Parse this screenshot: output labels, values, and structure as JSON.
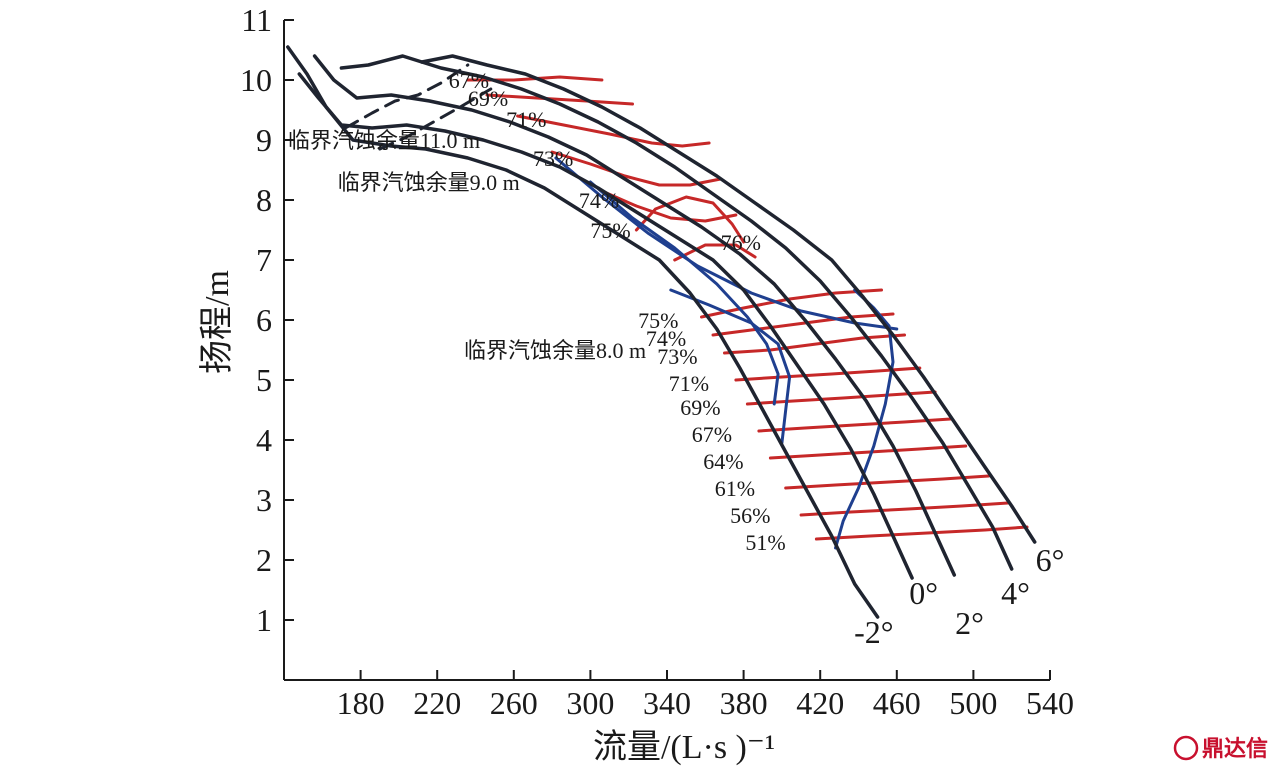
{
  "chart_data": {
    "type": "line",
    "title": "",
    "xlabel": "流量/(L·s )⁻¹",
    "ylabel": "扬程/m",
    "xlim": [
      140,
      540
    ],
    "ylim": [
      0,
      11
    ],
    "x_ticks": [
      180,
      220,
      260,
      300,
      340,
      380,
      420,
      460,
      500,
      540
    ],
    "y_ticks": [
      1,
      2,
      3,
      4,
      5,
      6,
      7,
      8,
      9,
      10,
      11
    ],
    "head_curves": [
      {
        "name": "-2°",
        "color": "#1f2430",
        "points": [
          [
            142,
            10.55
          ],
          [
            152,
            10.1
          ],
          [
            162,
            9.55
          ],
          [
            176,
            9.0
          ],
          [
            196,
            8.9
          ],
          [
            214,
            8.85
          ],
          [
            236,
            8.7
          ],
          [
            256,
            8.5
          ],
          [
            276,
            8.2
          ],
          [
            296,
            7.8
          ],
          [
            316,
            7.4
          ],
          [
            336,
            7.0
          ],
          [
            352,
            6.45
          ],
          [
            366,
            5.85
          ],
          [
            378,
            5.2
          ],
          [
            390,
            4.5
          ],
          [
            402,
            3.8
          ],
          [
            414,
            3.1
          ],
          [
            426,
            2.4
          ],
          [
            438,
            1.6
          ],
          [
            450,
            1.05
          ]
        ]
      },
      {
        "name": "0°",
        "color": "#1f2430",
        "points": [
          [
            148,
            10.1
          ],
          [
            158,
            9.7
          ],
          [
            170,
            9.25
          ],
          [
            186,
            9.2
          ],
          [
            204,
            9.25
          ],
          [
            224,
            9.15
          ],
          [
            244,
            9.0
          ],
          [
            264,
            8.8
          ],
          [
            284,
            8.55
          ],
          [
            304,
            8.2
          ],
          [
            324,
            7.8
          ],
          [
            344,
            7.4
          ],
          [
            364,
            7.0
          ],
          [
            380,
            6.5
          ],
          [
            394,
            5.9
          ],
          [
            408,
            5.25
          ],
          [
            422,
            4.6
          ],
          [
            436,
            3.85
          ],
          [
            448,
            3.1
          ],
          [
            458,
            2.4
          ],
          [
            468,
            1.7
          ]
        ]
      },
      {
        "name": "2°",
        "color": "#1f2430",
        "points": [
          [
            156,
            10.4
          ],
          [
            166,
            10.0
          ],
          [
            178,
            9.7
          ],
          [
            196,
            9.75
          ],
          [
            216,
            9.65
          ],
          [
            238,
            9.5
          ],
          [
            258,
            9.3
          ],
          [
            278,
            9.05
          ],
          [
            298,
            8.75
          ],
          [
            318,
            8.35
          ],
          [
            338,
            7.95
          ],
          [
            358,
            7.55
          ],
          [
            378,
            7.1
          ],
          [
            396,
            6.6
          ],
          [
            412,
            6.0
          ],
          [
            428,
            5.35
          ],
          [
            444,
            4.65
          ],
          [
            458,
            3.9
          ],
          [
            470,
            3.15
          ],
          [
            480,
            2.45
          ],
          [
            490,
            1.75
          ]
        ]
      },
      {
        "name": "4°",
        "color": "#1f2430",
        "points": [
          [
            170,
            10.2
          ],
          [
            184,
            10.25
          ],
          [
            202,
            10.4
          ],
          [
            222,
            10.2
          ],
          [
            244,
            10.05
          ],
          [
            264,
            9.85
          ],
          [
            284,
            9.6
          ],
          [
            304,
            9.3
          ],
          [
            324,
            8.95
          ],
          [
            344,
            8.55
          ],
          [
            364,
            8.1
          ],
          [
            384,
            7.65
          ],
          [
            402,
            7.2
          ],
          [
            420,
            6.65
          ],
          [
            436,
            6.05
          ],
          [
            452,
            5.4
          ],
          [
            468,
            4.7
          ],
          [
            484,
            3.95
          ],
          [
            498,
            3.2
          ],
          [
            510,
            2.55
          ],
          [
            520,
            1.85
          ]
        ]
      },
      {
        "name": "6°",
        "color": "#1f2430",
        "points": [
          [
            212,
            10.3
          ],
          [
            228,
            10.4
          ],
          [
            246,
            10.25
          ],
          [
            266,
            10.1
          ],
          [
            286,
            9.85
          ],
          [
            306,
            9.55
          ],
          [
            326,
            9.2
          ],
          [
            346,
            8.8
          ],
          [
            366,
            8.4
          ],
          [
            386,
            7.95
          ],
          [
            406,
            7.5
          ],
          [
            426,
            7.0
          ],
          [
            442,
            6.4
          ],
          [
            458,
            5.75
          ],
          [
            474,
            5.05
          ],
          [
            490,
            4.3
          ],
          [
            506,
            3.55
          ],
          [
            520,
            2.9
          ],
          [
            532,
            2.3
          ]
        ]
      }
    ],
    "npsh_curves": [
      {
        "name": "临界汽蚀余量11.0 m",
        "color": "#1f2430",
        "dash": true,
        "points": [
          [
            172,
            9.2
          ],
          [
            186,
            9.45
          ],
          [
            198,
            9.65
          ],
          [
            210,
            9.75
          ],
          [
            222,
            9.95
          ],
          [
            236,
            10.25
          ]
        ]
      },
      {
        "name": "临界汽蚀余量9.0 m",
        "color": "#1f2430",
        "dash": true,
        "points": [
          [
            190,
            8.85
          ],
          [
            204,
            9.05
          ],
          [
            218,
            9.3
          ],
          [
            232,
            9.55
          ],
          [
            248,
            9.85
          ]
        ]
      },
      {
        "name": "临界汽蚀余量8.0 m",
        "color": "#1f3f8f",
        "dash": false,
        "points": [
          [
            282,
            8.7
          ],
          [
            306,
            8.05
          ],
          [
            330,
            7.45
          ],
          [
            356,
            6.9
          ],
          [
            384,
            6.45
          ],
          [
            410,
            6.15
          ],
          [
            438,
            5.95
          ],
          [
            460,
            5.85
          ]
        ]
      }
    ],
    "efficiency_contours": [
      {
        "label": "67%",
        "color": "#c62828",
        "points": [
          [
            236,
            10.0
          ],
          [
            260,
            10.0
          ],
          [
            284,
            10.05
          ],
          [
            306,
            10.0
          ]
        ]
      },
      {
        "label": "69%",
        "color": "#c62828",
        "points": [
          [
            246,
            9.75
          ],
          [
            272,
            9.7
          ],
          [
            298,
            9.65
          ],
          [
            322,
            9.6
          ]
        ]
      },
      {
        "label": "71%",
        "color": "#c62828",
        "points": [
          [
            262,
            9.4
          ],
          [
            286,
            9.25
          ],
          [
            310,
            9.1
          ],
          [
            332,
            8.95
          ],
          [
            348,
            8.9
          ],
          [
            362,
            8.95
          ]
        ]
      },
      {
        "label": "73%",
        "color": "#c62828",
        "points": [
          [
            280,
            8.8
          ],
          [
            300,
            8.6
          ],
          [
            318,
            8.4
          ],
          [
            336,
            8.25
          ],
          [
            352,
            8.25
          ],
          [
            368,
            8.35
          ]
        ]
      },
      {
        "label": "74%",
        "color": "#c62828",
        "points": [
          [
            306,
            8.15
          ],
          [
            324,
            7.9
          ],
          [
            342,
            7.7
          ],
          [
            360,
            7.65
          ],
          [
            376,
            7.75
          ]
        ]
      },
      {
        "label": "75%",
        "color": "#c62828",
        "points": [
          [
            324,
            7.5
          ],
          [
            334,
            7.85
          ],
          [
            350,
            8.05
          ],
          [
            364,
            7.95
          ],
          [
            374,
            7.6
          ],
          [
            380,
            7.3
          ]
        ]
      },
      {
        "label": "76%",
        "color": "#c62828",
        "points": [
          [
            344,
            7.0
          ],
          [
            360,
            7.25
          ],
          [
            376,
            7.25
          ],
          [
            386,
            7.05
          ]
        ]
      },
      {
        "label": "75%",
        "color": "#c62828",
        "points": [
          [
            358,
            6.05
          ],
          [
            380,
            6.2
          ],
          [
            404,
            6.35
          ],
          [
            428,
            6.45
          ],
          [
            452,
            6.5
          ]
        ]
      },
      {
        "label": "74%",
        "color": "#c62828",
        "points": [
          [
            364,
            5.75
          ],
          [
            388,
            5.85
          ],
          [
            412,
            5.95
          ],
          [
            436,
            6.05
          ],
          [
            458,
            6.1
          ]
        ]
      },
      {
        "label": "73%",
        "color": "#c62828",
        "points": [
          [
            370,
            5.45
          ],
          [
            394,
            5.5
          ],
          [
            418,
            5.6
          ],
          [
            442,
            5.7
          ],
          [
            464,
            5.75
          ]
        ]
      },
      {
        "label": "71%",
        "color": "#c62828",
        "points": [
          [
            376,
            5.0
          ],
          [
            400,
            5.05
          ],
          [
            426,
            5.1
          ],
          [
            450,
            5.15
          ],
          [
            472,
            5.2
          ]
        ]
      },
      {
        "label": "69%",
        "color": "#c62828",
        "points": [
          [
            382,
            4.6
          ],
          [
            406,
            4.65
          ],
          [
            432,
            4.7
          ],
          [
            456,
            4.75
          ],
          [
            480,
            4.8
          ]
        ]
      },
      {
        "label": "67%",
        "color": "#c62828",
        "points": [
          [
            388,
            4.15
          ],
          [
            412,
            4.2
          ],
          [
            438,
            4.25
          ],
          [
            464,
            4.3
          ],
          [
            488,
            4.35
          ]
        ]
      },
      {
        "label": "64%",
        "color": "#c62828",
        "points": [
          [
            394,
            3.7
          ],
          [
            420,
            3.75
          ],
          [
            446,
            3.8
          ],
          [
            472,
            3.85
          ],
          [
            496,
            3.9
          ]
        ]
      },
      {
        "label": "61%",
        "color": "#c62828",
        "points": [
          [
            402,
            3.2
          ],
          [
            428,
            3.25
          ],
          [
            456,
            3.3
          ],
          [
            484,
            3.35
          ],
          [
            508,
            3.4
          ]
        ]
      },
      {
        "label": "56%",
        "color": "#c62828",
        "points": [
          [
            410,
            2.75
          ],
          [
            436,
            2.8
          ],
          [
            466,
            2.85
          ],
          [
            494,
            2.9
          ],
          [
            518,
            2.95
          ]
        ]
      },
      {
        "label": "51%",
        "color": "#c62828",
        "points": [
          [
            418,
            2.35
          ],
          [
            446,
            2.4
          ],
          [
            476,
            2.45
          ],
          [
            506,
            2.5
          ],
          [
            528,
            2.55
          ]
        ]
      }
    ],
    "boundary_curves": [
      {
        "color": "#1f3f8f",
        "points": [
          [
            300,
            8.3
          ],
          [
            322,
            7.7
          ],
          [
            344,
            7.2
          ],
          [
            366,
            6.6
          ],
          [
            382,
            6.05
          ],
          [
            392,
            5.6
          ],
          [
            398,
            5.1
          ],
          [
            396,
            4.6
          ]
        ]
      },
      {
        "color": "#1f3f8f",
        "points": [
          [
            342,
            6.5
          ],
          [
            362,
            6.25
          ],
          [
            384,
            5.95
          ],
          [
            398,
            5.6
          ],
          [
            404,
            5.05
          ],
          [
            402,
            4.5
          ],
          [
            400,
            3.95
          ]
        ]
      },
      {
        "color": "#1f3f8f",
        "points": [
          [
            438,
            6.5
          ],
          [
            448,
            6.2
          ],
          [
            456,
            5.9
          ],
          [
            458,
            5.3
          ],
          [
            454,
            4.6
          ],
          [
            448,
            3.9
          ],
          [
            440,
            3.2
          ],
          [
            432,
            2.65
          ],
          [
            428,
            2.2
          ]
        ]
      }
    ],
    "annotations": [
      {
        "text": "临界汽蚀余量11.0 m",
        "x": 142,
        "y": 9.0,
        "anchor": "start"
      },
      {
        "text": "临界汽蚀余量9.0 m",
        "x": 168,
        "y": 8.3,
        "anchor": "start"
      },
      {
        "text": "临界汽蚀余量8.0 m",
        "x": 234,
        "y": 5.5,
        "anchor": "start"
      },
      {
        "text": "67%",
        "x": 226,
        "y": 10.0,
        "anchor": "start"
      },
      {
        "text": "69%",
        "x": 236,
        "y": 9.7,
        "anchor": "start"
      },
      {
        "text": "71%",
        "x": 256,
        "y": 9.35,
        "anchor": "start"
      },
      {
        "text": "73%",
        "x": 270,
        "y": 8.7,
        "anchor": "start"
      },
      {
        "text": "74%",
        "x": 294,
        "y": 8.0,
        "anchor": "start"
      },
      {
        "text": "75%",
        "x": 300,
        "y": 7.5,
        "anchor": "start"
      },
      {
        "text": "76%",
        "x": 368,
        "y": 7.3,
        "anchor": "start"
      },
      {
        "text": "75%",
        "x": 346,
        "y": 6.0,
        "anchor": "end"
      },
      {
        "text": "74%",
        "x": 350,
        "y": 5.7,
        "anchor": "end"
      },
      {
        "text": "73%",
        "x": 356,
        "y": 5.4,
        "anchor": "end"
      },
      {
        "text": "71%",
        "x": 362,
        "y": 4.95,
        "anchor": "end"
      },
      {
        "text": "69%",
        "x": 368,
        "y": 4.55,
        "anchor": "end"
      },
      {
        "text": "67%",
        "x": 374,
        "y": 4.1,
        "anchor": "end"
      },
      {
        "text": "64%",
        "x": 380,
        "y": 3.65,
        "anchor": "end"
      },
      {
        "text": "61%",
        "x": 386,
        "y": 3.2,
        "anchor": "end"
      },
      {
        "text": "56%",
        "x": 394,
        "y": 2.75,
        "anchor": "end"
      },
      {
        "text": "51%",
        "x": 402,
        "y": 2.3,
        "anchor": "end"
      }
    ],
    "angle_labels": [
      {
        "text": "-2°",
        "x": 448,
        "y": 0.8,
        "anchor": "middle"
      },
      {
        "text": "0°",
        "x": 474,
        "y": 1.45,
        "anchor": "middle"
      },
      {
        "text": "2°",
        "x": 498,
        "y": 0.95,
        "anchor": "middle"
      },
      {
        "text": "4°",
        "x": 522,
        "y": 1.45,
        "anchor": "middle"
      },
      {
        "text": "6°",
        "x": 540,
        "y": 2.0,
        "anchor": "middle"
      }
    ]
  },
  "watermark": {
    "text": "鼎达信",
    "color": "#c8102e"
  }
}
